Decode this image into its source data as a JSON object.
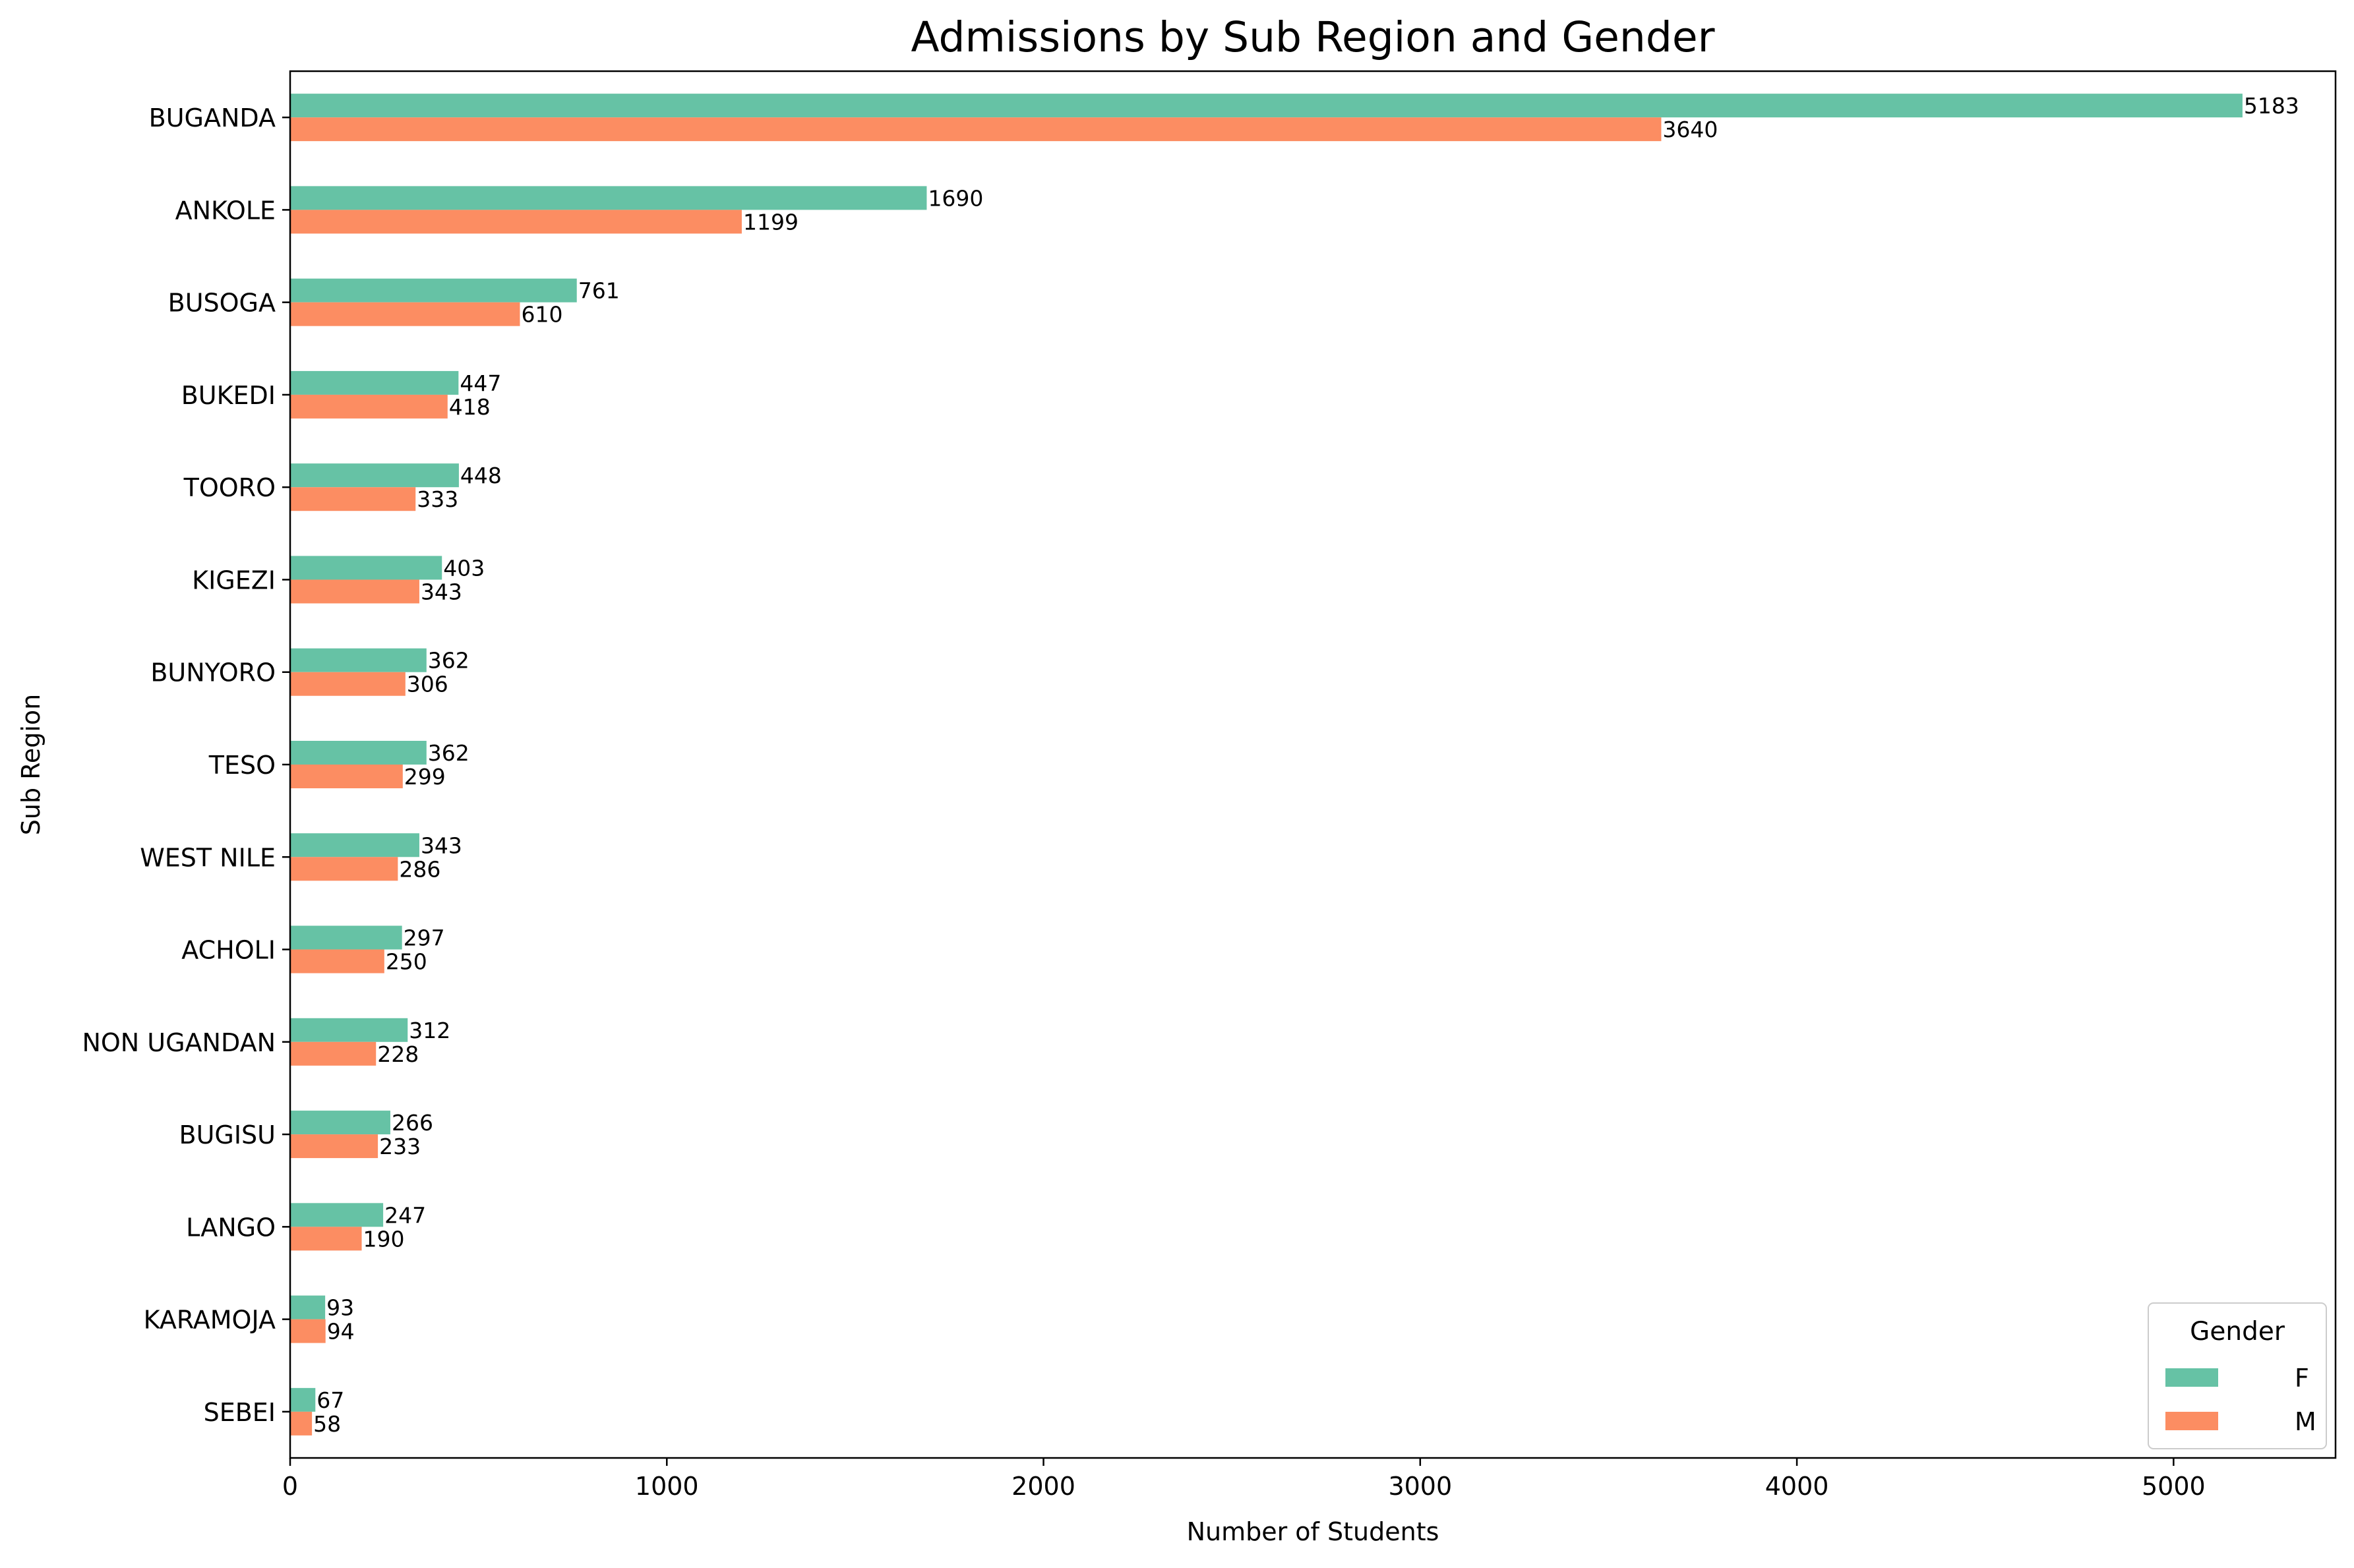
{
  "chart_data": {
    "type": "bar",
    "orientation": "horizontal",
    "title": "Admissions by Sub Region and Gender",
    "xlabel": "Number of Students",
    "ylabel": "Sub Region",
    "xlim": [
      0,
      5430
    ],
    "xticks": [
      0,
      1000,
      2000,
      3000,
      4000,
      5000
    ],
    "grid": false,
    "categories": [
      "BUGANDA",
      "ANKOLE",
      "BUSOGA",
      "BUKEDI",
      "TOORO",
      "KIGEZI",
      "BUNYORO",
      "TESO",
      "WEST NILE",
      "ACHOLI",
      "NON UGANDAN",
      "BUGISU",
      "LANGO",
      "KARAMOJA",
      "SEBEI"
    ],
    "series": [
      {
        "name": "F",
        "color": "#66c2a5",
        "values": [
          5183,
          1690,
          761,
          447,
          448,
          403,
          362,
          362,
          343,
          297,
          312,
          266,
          247,
          93,
          67
        ]
      },
      {
        "name": "M",
        "color": "#fc8d62",
        "values": [
          3640,
          1199,
          610,
          418,
          333,
          343,
          306,
          299,
          286,
          250,
          228,
          233,
          190,
          94,
          58
        ]
      }
    ],
    "legend": {
      "title": "Gender",
      "position": "bottom-right"
    }
  }
}
